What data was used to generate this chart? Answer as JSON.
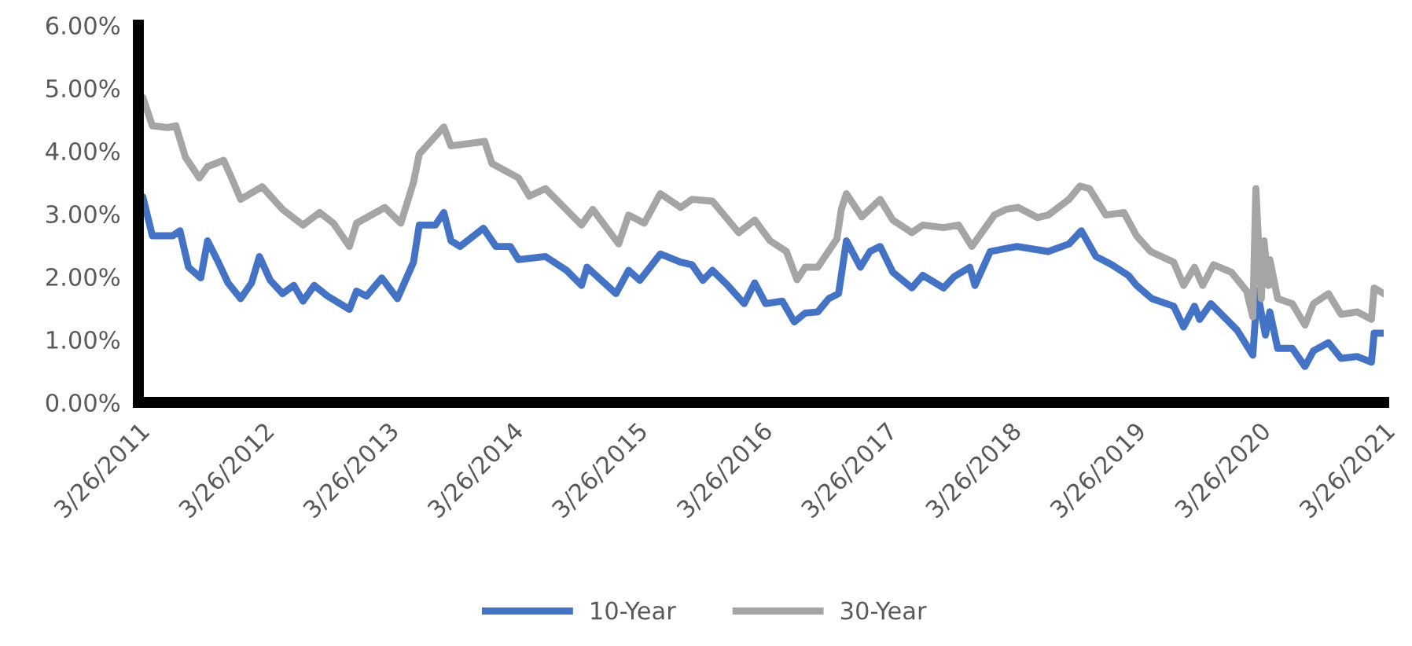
{
  "chart_data": {
    "type": "line",
    "legend": "bottom",
    "grid": false,
    "marker": "none",
    "line_style": "solid",
    "xlim": [
      "2011-03-26",
      "2021-03-26"
    ],
    "xticks": [
      {
        "value": "2011-03-26",
        "label": "3/26/2011"
      },
      {
        "value": "2012-03-26",
        "label": "3/26/2012"
      },
      {
        "value": "2013-03-26",
        "label": "3/26/2013"
      },
      {
        "value": "2014-03-26",
        "label": "3/26/2014"
      },
      {
        "value": "2015-03-26",
        "label": "3/26/2015"
      },
      {
        "value": "2016-03-26",
        "label": "3/26/2016"
      },
      {
        "value": "2017-03-26",
        "label": "3/26/2017"
      },
      {
        "value": "2018-03-26",
        "label": "3/26/2018"
      },
      {
        "value": "2019-03-26",
        "label": "3/26/2019"
      },
      {
        "value": "2020-03-26",
        "label": "3/26/2020"
      },
      {
        "value": "2021-03-26",
        "label": "3/26/2021"
      }
    ],
    "ylim": [
      0,
      6
    ],
    "yticks": [
      {
        "value": 0,
        "label": "0.00%"
      },
      {
        "value": 1,
        "label": "1.00%"
      },
      {
        "value": 2,
        "label": "2.00%"
      },
      {
        "value": 3,
        "label": "3.00%"
      },
      {
        "value": 4,
        "label": "4.00%"
      },
      {
        "value": 5,
        "label": "5.00%"
      },
      {
        "value": 6,
        "label": "6.00%"
      }
    ],
    "series": [
      {
        "name": "10-Year",
        "color": "#4472c4",
        "x": [
          "2011-03-26",
          "2011-04-08",
          "2011-05-06",
          "2011-07-05",
          "2011-07-26",
          "2011-08-20",
          "2011-09-25",
          "2011-10-15",
          "2011-11-12",
          "2011-12-14",
          "2012-01-20",
          "2012-02-21",
          "2012-03-15",
          "2012-04-16",
          "2012-05-22",
          "2012-06-24",
          "2012-07-21",
          "2012-08-23",
          "2012-10-01",
          "2012-12-04",
          "2012-12-25",
          "2013-01-23",
          "2013-03-09",
          "2013-04-24",
          "2013-06-10",
          "2013-06-27",
          "2013-08-13",
          "2013-09-07",
          "2013-09-28",
          "2013-10-25",
          "2014-01-01",
          "2014-02-07",
          "2014-03-21",
          "2014-04-14",
          "2014-07-02",
          "2014-09-02",
          "2014-10-16",
          "2014-11-01",
          "2015-01-25",
          "2015-03-03",
          "2015-04-05",
          "2015-06-04",
          "2015-08-03",
          "2015-09-05",
          "2015-10-07",
          "2015-11-04",
          "2015-12-19",
          "2016-02-05",
          "2016-03-07",
          "2016-04-08",
          "2016-05-27",
          "2016-07-01",
          "2016-08-02",
          "2016-09-08",
          "2016-10-10",
          "2016-11-08",
          "2016-12-01",
          "2017-01-11",
          "2017-02-08",
          "2017-03-10",
          "2017-04-16",
          "2017-06-11",
          "2017-07-13",
          "2017-09-12",
          "2017-10-13",
          "2017-11-28",
          "2017-12-13",
          "2018-01-27",
          "2018-04-15",
          "2018-07-16",
          "2018-09-15",
          "2018-10-21",
          "2018-12-03",
          "2019-01-18",
          "2019-03-08",
          "2019-04-01",
          "2019-05-16",
          "2019-07-19",
          "2019-08-17",
          "2019-09-18",
          "2019-10-03",
          "2019-11-05",
          "2020-01-21",
          "2020-03-07",
          "2020-03-20",
          "2020-04-13",
          "2020-04-26",
          "2020-05-19",
          "2020-07-01",
          "2020-08-07",
          "2020-09-01",
          "2020-10-15",
          "2020-11-21",
          "2021-01-07",
          "2021-02-18",
          "2021-02-26",
          "2021-03-23"
        ],
        "values": [
          2.9,
          3.27,
          2.65,
          2.65,
          2.73,
          2.15,
          1.98,
          2.57,
          2.27,
          1.9,
          1.65,
          1.9,
          2.32,
          1.94,
          1.73,
          1.86,
          1.61,
          1.86,
          1.69,
          1.48,
          1.77,
          1.69,
          1.98,
          1.65,
          2.23,
          2.82,
          2.82,
          3.02,
          2.57,
          2.48,
          2.77,
          2.48,
          2.48,
          2.27,
          2.32,
          2.1,
          1.86,
          2.15,
          1.73,
          2.1,
          1.94,
          2.36,
          2.23,
          2.19,
          1.94,
          2.1,
          1.86,
          1.57,
          1.9,
          1.57,
          1.61,
          1.28,
          1.42,
          1.44,
          1.65,
          1.73,
          2.57,
          2.15,
          2.4,
          2.48,
          2.07,
          1.82,
          2.02,
          1.82,
          2.0,
          2.15,
          1.86,
          2.4,
          2.48,
          2.4,
          2.52,
          2.73,
          2.32,
          2.19,
          2.02,
          1.86,
          1.65,
          1.53,
          1.2,
          1.53,
          1.32,
          1.57,
          1.15,
          0.75,
          1.77,
          1.07,
          1.44,
          0.86,
          0.86,
          0.57,
          0.82,
          0.95,
          0.7,
          0.73,
          0.64,
          1.1,
          1.1
        ]
      },
      {
        "name": "30-Year",
        "color": "#a5a5a5",
        "x": [
          "2011-03-26",
          "2011-04-08",
          "2011-05-06",
          "2011-06-21",
          "2011-07-14",
          "2011-08-11",
          "2011-09-21",
          "2011-10-15",
          "2011-12-01",
          "2011-12-22",
          "2012-01-20",
          "2012-03-23",
          "2012-05-22",
          "2012-07-21",
          "2012-09-08",
          "2012-10-18",
          "2012-12-04",
          "2012-12-25",
          "2013-03-18",
          "2013-05-04",
          "2013-06-10",
          "2013-06-27",
          "2013-09-07",
          "2013-09-28",
          "2014-01-05",
          "2014-01-26",
          "2014-04-14",
          "2014-05-16",
          "2014-07-02",
          "2014-10-16",
          "2014-11-18",
          "2015-02-02",
          "2015-03-03",
          "2015-04-18",
          "2015-06-04",
          "2015-08-03",
          "2015-09-05",
          "2015-11-04",
          "2016-01-20",
          "2016-03-07",
          "2016-04-21",
          "2016-06-08",
          "2016-07-09",
          "2016-08-02",
          "2016-09-08",
          "2016-11-03",
          "2016-11-16",
          "2016-12-01",
          "2017-01-15",
          "2017-03-10",
          "2017-04-16",
          "2017-06-11",
          "2017-07-13",
          "2017-09-12",
          "2017-10-26",
          "2017-12-04",
          "2018-02-08",
          "2018-03-14",
          "2018-04-19",
          "2018-06-14",
          "2018-07-16",
          "2018-09-15",
          "2018-10-17",
          "2018-11-14",
          "2019-01-01",
          "2019-02-23",
          "2019-04-01",
          "2019-05-12",
          "2019-07-19",
          "2019-08-17",
          "2019-09-18",
          "2019-10-12",
          "2019-11-13",
          "2020-01-04",
          "2020-02-18",
          "2020-03-07",
          "2020-03-16",
          "2020-04-01",
          "2020-04-09",
          "2020-04-22",
          "2020-04-26",
          "2020-05-19",
          "2020-07-01",
          "2020-08-07",
          "2020-09-01",
          "2020-10-15",
          "2020-11-21",
          "2021-01-07",
          "2021-02-18",
          "2021-02-26",
          "2021-03-23"
        ],
        "values": [
          4.73,
          4.85,
          4.4,
          4.37,
          4.4,
          3.9,
          3.57,
          3.75,
          3.85,
          3.6,
          3.23,
          3.43,
          3.07,
          2.82,
          3.02,
          2.85,
          2.48,
          2.85,
          3.1,
          2.85,
          3.5,
          3.95,
          4.38,
          4.08,
          4.15,
          3.8,
          3.57,
          3.28,
          3.4,
          2.82,
          3.07,
          2.52,
          2.98,
          2.85,
          3.32,
          3.1,
          3.23,
          3.2,
          2.7,
          2.9,
          2.57,
          2.4,
          1.95,
          2.15,
          2.15,
          2.6,
          3.07,
          3.32,
          2.95,
          3.23,
          2.9,
          2.7,
          2.82,
          2.78,
          2.82,
          2.48,
          2.98,
          3.07,
          3.1,
          2.94,
          2.98,
          3.23,
          3.44,
          3.4,
          2.98,
          3.02,
          2.65,
          2.4,
          2.23,
          1.86,
          2.15,
          1.86,
          2.19,
          2.07,
          1.77,
          1.36,
          3.4,
          1.65,
          2.57,
          1.86,
          2.27,
          1.65,
          1.57,
          1.23,
          1.57,
          1.73,
          1.4,
          1.44,
          1.32,
          1.82,
          1.74
        ]
      }
    ]
  }
}
